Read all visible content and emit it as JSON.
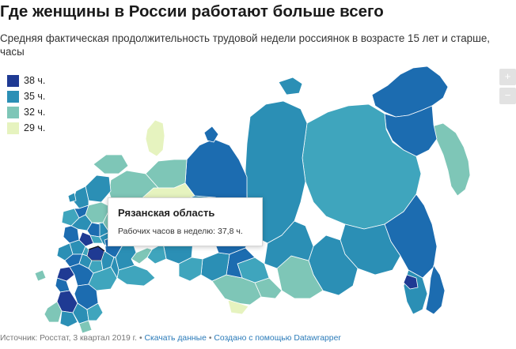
{
  "header": {
    "title": "Где женщины в России работают больше всего",
    "subtitle": "Средняя фактическая продолжительность трудовой недели россиянок в возрасте 15 лет и старше, часы"
  },
  "legend": {
    "items": [
      {
        "label": "38 ч.",
        "color": "#1f3a93"
      },
      {
        "label": "35 ч.",
        "color": "#2b8fb5"
      },
      {
        "label": "32 ч.",
        "color": "#7ec6b7"
      },
      {
        "label": "29 ч.",
        "color": "#e6f3bf"
      }
    ]
  },
  "zoom": {
    "in_label": "+",
    "out_label": "−"
  },
  "tooltip": {
    "region": "Рязанская область",
    "line": "Рабочих часов в неделю: 37,8 ч."
  },
  "footer": {
    "source": "Источник: Росстат, 3 квартал 2019 г.",
    "separator": "•",
    "download_link": "Скачать данные",
    "made_with": "Создано с помощью Datawrapper"
  },
  "map_colors": {
    "c38": "#1f3a93",
    "c36": "#1c6cb0",
    "c35": "#2b8fb5",
    "c34": "#3fa5bd",
    "c32": "#7ec6b7",
    "c29": "#e6f3bf",
    "border": "#ffffff"
  }
}
